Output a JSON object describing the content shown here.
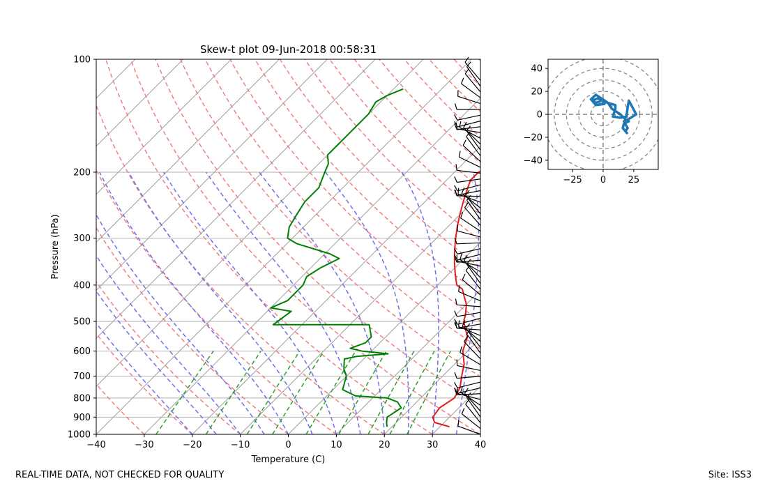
{
  "footer": {
    "left": "REAL-TIME DATA, NOT CHECKED FOR QUALITY",
    "right": "Site: ISS3"
  },
  "chart_data": [
    {
      "type": "line",
      "subtype": "skew-t log-p",
      "title": "Skew-t plot 09-Jun-2018 00:58:31",
      "xlabel": "Temperature (C)",
      "ylabel": "Pressure (hPa)",
      "xlim": [
        -40,
        40
      ],
      "ylim": [
        1000,
        100
      ],
      "y_scale": "log",
      "skew_angle_deg": 45,
      "x_ticks": [
        -40,
        -30,
        -20,
        -10,
        0,
        10,
        20,
        30,
        40
      ],
      "x_tick_labels": [
        "−40",
        "−30",
        "−20",
        "−10",
        "0",
        "10",
        "20",
        "30",
        "40"
      ],
      "y_ticks": [
        1000,
        900,
        800,
        700,
        600,
        500,
        400,
        300,
        200,
        100
      ],
      "y_tick_labels": [
        "1000",
        "900",
        "800",
        "700",
        "600",
        "500",
        "400",
        "300",
        "200",
        "100"
      ],
      "grid": true,
      "series": [
        {
          "name": "temperature",
          "color": "#e41a1c",
          "points": [
            [
              32,
              955
            ],
            [
              28,
              930
            ],
            [
              26.5,
              900
            ],
            [
              26,
              850
            ],
            [
              27,
              800
            ],
            [
              26,
              750
            ],
            [
              24,
              700
            ],
            [
              22,
              650
            ],
            [
              19,
              600
            ],
            [
              17,
              550
            ],
            [
              13,
              500
            ],
            [
              12,
              480
            ],
            [
              10,
              450
            ],
            [
              8,
              430
            ],
            [
              6,
              410
            ],
            [
              4,
              400
            ],
            [
              3,
              390
            ],
            [
              1,
              370
            ],
            [
              -1,
              350
            ],
            [
              -3,
              330
            ],
            [
              -5,
              310
            ],
            [
              -6,
              300
            ],
            [
              -8,
              280
            ],
            [
              -10,
              260
            ],
            [
              -12,
              240
            ],
            [
              -14,
              220
            ],
            [
              -15,
              210
            ],
            [
              -15,
              200
            ],
            [
              -13,
              190
            ],
            [
              -11,
              180
            ],
            [
              -9,
              170
            ],
            [
              -8,
              160
            ],
            [
              -8,
              155
            ],
            [
              -5,
              150
            ],
            [
              -3,
              145
            ],
            [
              -2,
              140
            ],
            [
              -1,
              130
            ],
            [
              0,
              120
            ],
            [
              0,
              115
            ]
          ]
        },
        {
          "name": "dewpoint",
          "color": "#008000",
          "points": [
            [
              19,
              955
            ],
            [
              18,
              930
            ],
            [
              17,
              900
            ],
            [
              18,
              850
            ],
            [
              16,
              820
            ],
            [
              13,
              800
            ],
            [
              6,
              790
            ],
            [
              2,
              760
            ],
            [
              1,
              730
            ],
            [
              0,
              700
            ],
            [
              -2,
              670
            ],
            [
              -3,
              650
            ],
            [
              -4,
              630
            ],
            [
              -2,
              620
            ],
            [
              4,
              610
            ],
            [
              -2,
              600
            ],
            [
              -5,
              590
            ],
            [
              -3,
              570
            ],
            [
              -3,
              550
            ],
            [
              -6,
              510
            ],
            [
              -26,
              510
            ],
            [
              -25,
              470
            ],
            [
              -30,
              460
            ],
            [
              -28,
              440
            ],
            [
              -28,
              420
            ],
            [
              -28,
              400
            ],
            [
              -29,
              380
            ],
            [
              -28,
              360
            ],
            [
              -26,
              340
            ],
            [
              -29,
              330
            ],
            [
              -38,
              310
            ],
            [
              -41,
              300
            ],
            [
              -43,
              280
            ],
            [
              -44,
              260
            ],
            [
              -45,
              240
            ],
            [
              -45,
              220
            ],
            [
              -47,
              200
            ],
            [
              -48,
              190
            ],
            [
              -50,
              180
            ],
            [
              -50,
              170
            ],
            [
              -50,
              160
            ],
            [
              -50,
              150
            ],
            [
              -50,
              140
            ],
            [
              -51,
              130
            ],
            [
              -50,
              125
            ],
            [
              -48,
              120
            ]
          ]
        }
      ],
      "background_lines": [
        {
          "name": "isotherms",
          "color": "#a0a0a0",
          "style": "solid"
        },
        {
          "name": "dry adiabats",
          "color": "#f08080",
          "style": "dashed"
        },
        {
          "name": "moist adiabats",
          "color": "#8080f0",
          "style": "dashed"
        },
        {
          "name": "mixing ratio lines",
          "color": "#2ca02c",
          "style": "dashed"
        }
      ],
      "wind_barbs": {
        "color": "#000000",
        "position": "right edge",
        "note": "wind barbs along pressure axis"
      }
    },
    {
      "type": "line",
      "subtype": "hodograph",
      "xlim": [
        -45,
        45
      ],
      "ylim": [
        -48,
        48
      ],
      "x_ticks": [
        -25,
        0,
        25
      ],
      "x_tick_labels": [
        "−25",
        "0",
        "25"
      ],
      "y_ticks": [
        -40,
        -20,
        0,
        20,
        40
      ],
      "y_tick_labels": [
        "−40",
        "−20",
        "0",
        "20",
        "40"
      ],
      "rings": [
        10,
        20,
        30,
        40,
        50
      ],
      "series": [
        {
          "name": "wind",
          "color": "#1f77b4",
          "points": [
            [
              18,
              -15
            ],
            [
              20,
              -12
            ],
            [
              17,
              -6
            ],
            [
              21,
              -4
            ],
            [
              24,
              -2
            ],
            [
              27,
              0
            ],
            [
              24,
              6
            ],
            [
              21,
              12
            ],
            [
              20,
              6
            ],
            [
              19,
              -2
            ],
            [
              14,
              -3
            ],
            [
              8,
              -2
            ],
            [
              10,
              5
            ],
            [
              10,
              8
            ],
            [
              4,
              10
            ],
            [
              -3,
              15
            ],
            [
              -6,
              17
            ],
            [
              -7,
              16
            ],
            [
              -10,
              13
            ],
            [
              -6,
              10
            ],
            [
              -1,
              12
            ],
            [
              1,
              9
            ],
            [
              -6,
              8
            ],
            [
              -9,
              12
            ],
            [
              -4,
              14
            ],
            [
              4,
              10
            ],
            [
              7,
              5
            ],
            [
              14,
              0
            ],
            [
              18,
              -4
            ],
            [
              21,
              -6
            ],
            [
              17,
              -8
            ],
            [
              16,
              -12
            ],
            [
              20,
              -17
            ]
          ]
        }
      ]
    }
  ]
}
